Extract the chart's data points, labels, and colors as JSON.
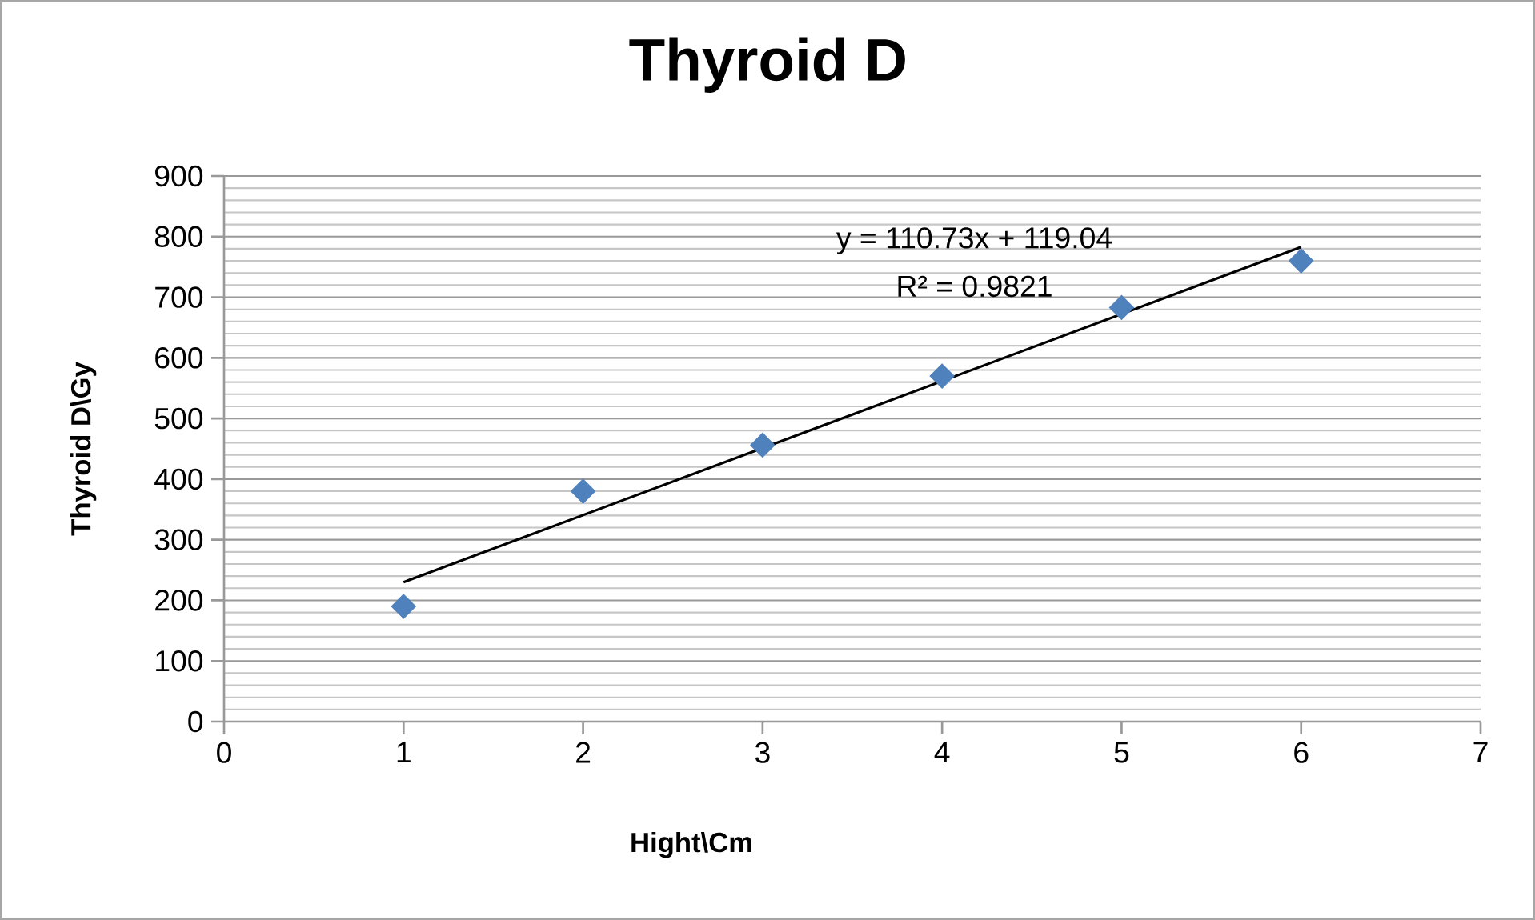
{
  "chart_data": {
    "type": "scatter",
    "title": "Thyroid D",
    "xlabel": "Hight\\Cm",
    "ylabel": "Thyroid D\\Gy",
    "x": [
      1,
      2,
      3,
      4,
      5,
      6
    ],
    "series": [
      {
        "color": "#4f81bd",
        "marker": "diamond",
        "values": [
          190,
          380,
          456,
          570,
          683,
          760
        ]
      },
      {
        "type": "line",
        "color": "#000000",
        "marker": "none",
        "line_style": "solid",
        "x": [
          1,
          6
        ],
        "values": [
          230,
          783
        ]
      }
    ],
    "annotations": [
      "y = 110.73x + 119.04",
      "R² = 0.9821"
    ],
    "xlim": [
      0,
      7
    ],
    "xticks": [
      0,
      1,
      2,
      3,
      4,
      5,
      6,
      7
    ],
    "ylim": [
      0,
      900
    ],
    "yticks": [
      0,
      100,
      200,
      300,
      400,
      500,
      600,
      700,
      800,
      900
    ],
    "grid": "y"
  }
}
